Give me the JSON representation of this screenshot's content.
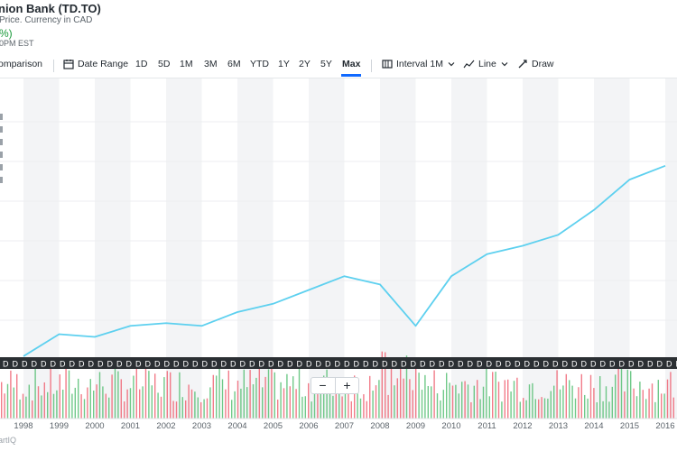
{
  "header": {
    "title": "nion Bank (TD.TO)",
    "subtitle": "Price. Currency in CAD",
    "change": "%)",
    "time": "0PM EST"
  },
  "toolbar": {
    "comparison": "omparison",
    "date_range": "Date Range",
    "ranges": [
      "1D",
      "5D",
      "1M",
      "3M",
      "6M",
      "YTD",
      "1Y",
      "2Y",
      "5Y",
      "Max"
    ],
    "active_range": "Max",
    "interval": "Interval 1M",
    "line": "Line",
    "draw": "Draw"
  },
  "chart": {
    "footer": "artIQ",
    "dividend_marker": "D",
    "zoom_out": "−",
    "zoom_in": "+",
    "line_color": "#5dd0ef",
    "up_color": "#4cbb6b",
    "down_color": "#ef5b6b"
  },
  "chart_data": {
    "type": "line",
    "x": [
      "1998",
      "1999",
      "2000",
      "2001",
      "2002",
      "2003",
      "2004",
      "2005",
      "2006",
      "2007",
      "2008",
      "2009",
      "2010",
      "2011",
      "2012",
      "2013",
      "2014",
      "2015",
      "2016"
    ],
    "series": [
      {
        "values": [
          1,
          9,
          8,
          12,
          13,
          12,
          17,
          20,
          25,
          30,
          27,
          12,
          30,
          38,
          41,
          45,
          54,
          65,
          70
        ]
      }
    ],
    "xlabel": "",
    "ylabel": ""
  }
}
